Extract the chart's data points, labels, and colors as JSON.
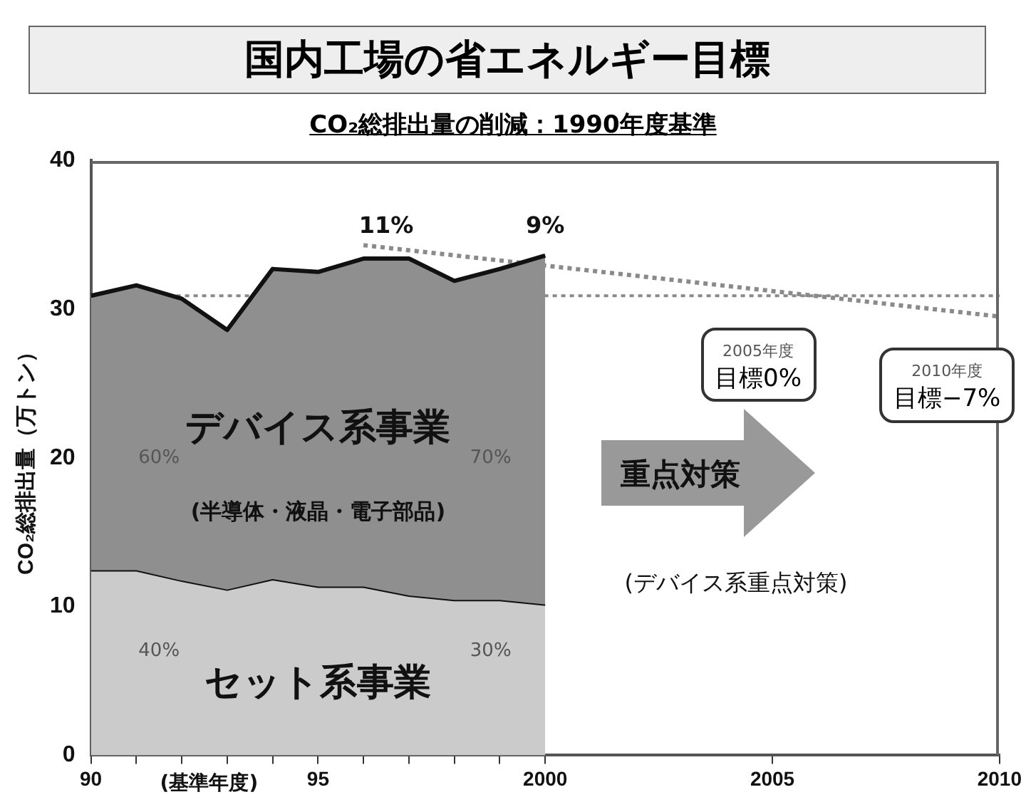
{
  "chart_data": {
    "type": "area",
    "title": "国内工場の省エネルギー目標",
    "subtitle": "CO₂総排出量の削減：1990年度基準",
    "ylabel": "CO₂総排出量（万トン）",
    "x": [
      1990,
      1991,
      1992,
      1993,
      1994,
      1995,
      1996,
      1997,
      1998,
      1999,
      2000
    ],
    "stacked": true,
    "series": [
      {
        "name": "セット系事業",
        "color": "#cbcbcb",
        "values": [
          12.4,
          12.4,
          11.7,
          11.1,
          11.8,
          11.3,
          11.3,
          10.7,
          10.4,
          10.4,
          10.1
        ]
      },
      {
        "name": "デバイス系事業",
        "color": "#8f8f8f",
        "values": [
          18.5,
          19.2,
          19.0,
          17.5,
          20.9,
          21.2,
          22.1,
          22.7,
          21.5,
          22.3,
          23.5
        ]
      },
      {
        "type": "line",
        "color": "#8a8a8a",
        "x": [
          1996,
          2010
        ],
        "values": [
          34.3,
          29.5
        ],
        "line_style": "dotted"
      }
    ],
    "xlim": [
      1990,
      2010
    ],
    "xticks": [
      {
        "value": 1990,
        "label": "90"
      },
      {
        "value": 1991,
        "label": null
      },
      {
        "value": 1992,
        "label": null
      },
      {
        "value": 1993,
        "label": null
      },
      {
        "value": 1994,
        "label": null
      },
      {
        "value": 1995,
        "label": "95"
      },
      {
        "value": 1996,
        "label": null
      },
      {
        "value": 1997,
        "label": null
      },
      {
        "value": 1998,
        "label": null
      },
      {
        "value": 1999,
        "label": null
      },
      2000,
      2005,
      2010
    ],
    "ylim": [
      0,
      40
    ],
    "yticks": [
      0,
      10,
      20,
      30,
      40
    ],
    "grid": false,
    "legend": false,
    "ref_lines": [
      {
        "axis": "y",
        "value": 30.9,
        "color": "#8a8a8a",
        "line_style": "dotted"
      }
    ],
    "annotations": [
      "11%",
      "9%",
      "60%",
      "70%",
      "40%",
      "30%",
      "(半導体・液晶・電子部品)",
      "重点対策",
      "(デバイス系重点対策)",
      "(基準年度)",
      "2005年度",
      "目標0%",
      "2010年度",
      "目標−7%"
    ]
  }
}
